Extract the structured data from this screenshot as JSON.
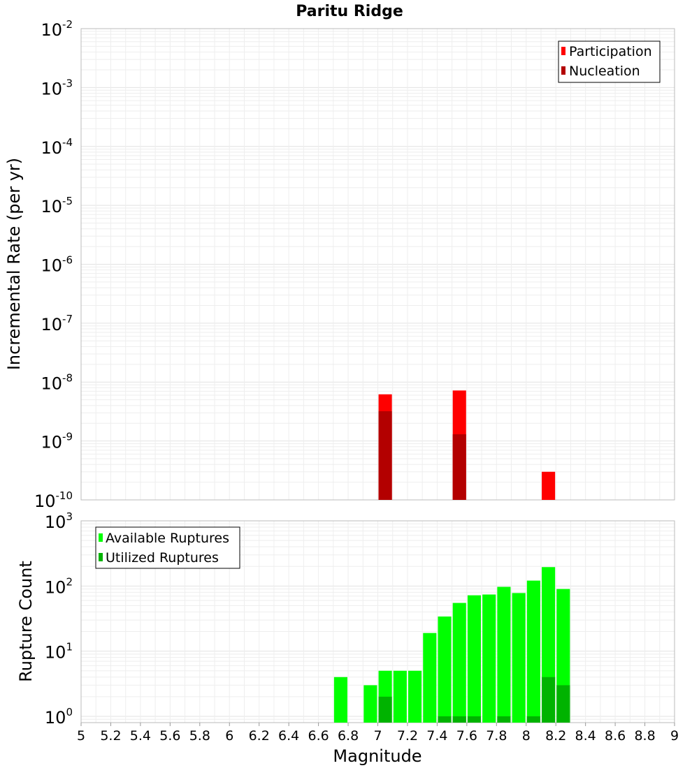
{
  "chart_data": [
    {
      "type": "bar",
      "title": "Paritu Ridge",
      "xlabel": "",
      "ylabel": "Incremental Rate (per yr)",
      "yscale": "log",
      "ylim": [
        1e-10,
        0.01
      ],
      "xlim": [
        5,
        9
      ],
      "grid": true,
      "legend_position": "top-right",
      "y_ticks": [
        {
          "base": "10",
          "exp": "-10"
        },
        {
          "base": "10",
          "exp": "-9"
        },
        {
          "base": "10",
          "exp": "-8"
        },
        {
          "base": "10",
          "exp": "-7"
        },
        {
          "base": "10",
          "exp": "-6"
        },
        {
          "base": "10",
          "exp": "-5"
        },
        {
          "base": "10",
          "exp": "-4"
        },
        {
          "base": "10",
          "exp": "-3"
        },
        {
          "base": "10",
          "exp": "-2"
        }
      ],
      "bar_width": 0.09,
      "series": [
        {
          "name": "Participation",
          "color": "#ff0000",
          "points": [
            {
              "x": 7.05,
              "y": 6.2e-09
            },
            {
              "x": 7.55,
              "y": 7.2e-09
            },
            {
              "x": 8.15,
              "y": 3e-10
            }
          ]
        },
        {
          "name": "Nucleation",
          "color": "#b30000",
          "points": [
            {
              "x": 7.05,
              "y": 3.2e-09
            },
            {
              "x": 7.55,
              "y": 1.3e-09
            }
          ]
        }
      ]
    },
    {
      "type": "bar",
      "title": "",
      "xlabel": "Magnitude",
      "ylabel": "Rupture Count",
      "yscale": "log",
      "ylim": [
        0.8,
        1000
      ],
      "xlim": [
        5,
        9
      ],
      "grid": true,
      "legend_position": "top-left",
      "y_ticks": [
        {
          "base": "10",
          "exp": "0",
          "value": 1
        },
        {
          "base": "10",
          "exp": "1",
          "value": 10
        },
        {
          "base": "10",
          "exp": "2",
          "value": 100
        },
        {
          "base": "10",
          "exp": "3",
          "value": 1000
        }
      ],
      "x_ticks": [
        "5",
        "5.2",
        "5.4",
        "5.6",
        "5.8",
        "6",
        "6.2",
        "6.4",
        "6.6",
        "6.8",
        "7",
        "7.2",
        "7.4",
        "7.6",
        "7.8",
        "8",
        "8.2",
        "8.4",
        "8.6",
        "8.8",
        "9"
      ],
      "bar_width": 0.09,
      "series": [
        {
          "name": "Available Ruptures",
          "color": "#00ff00",
          "points": [
            {
              "x": 6.75,
              "y": 4
            },
            {
              "x": 6.95,
              "y": 3
            },
            {
              "x": 7.05,
              "y": 5
            },
            {
              "x": 7.15,
              "y": 5
            },
            {
              "x": 7.25,
              "y": 5
            },
            {
              "x": 7.35,
              "y": 19
            },
            {
              "x": 7.45,
              "y": 34
            },
            {
              "x": 7.55,
              "y": 55
            },
            {
              "x": 7.65,
              "y": 72
            },
            {
              "x": 7.75,
              "y": 74
            },
            {
              "x": 7.85,
              "y": 97
            },
            {
              "x": 7.95,
              "y": 78
            },
            {
              "x": 8.05,
              "y": 121
            },
            {
              "x": 8.15,
              "y": 195
            },
            {
              "x": 8.25,
              "y": 90
            }
          ]
        },
        {
          "name": "Utilized Ruptures",
          "color": "#00b300",
          "points": [
            {
              "x": 7.05,
              "y": 2
            },
            {
              "x": 7.45,
              "y": 1
            },
            {
              "x": 7.55,
              "y": 1
            },
            {
              "x": 7.65,
              "y": 1
            },
            {
              "x": 7.85,
              "y": 1
            },
            {
              "x": 8.05,
              "y": 1
            },
            {
              "x": 8.15,
              "y": 4
            },
            {
              "x": 8.25,
              "y": 3
            }
          ]
        }
      ]
    }
  ]
}
